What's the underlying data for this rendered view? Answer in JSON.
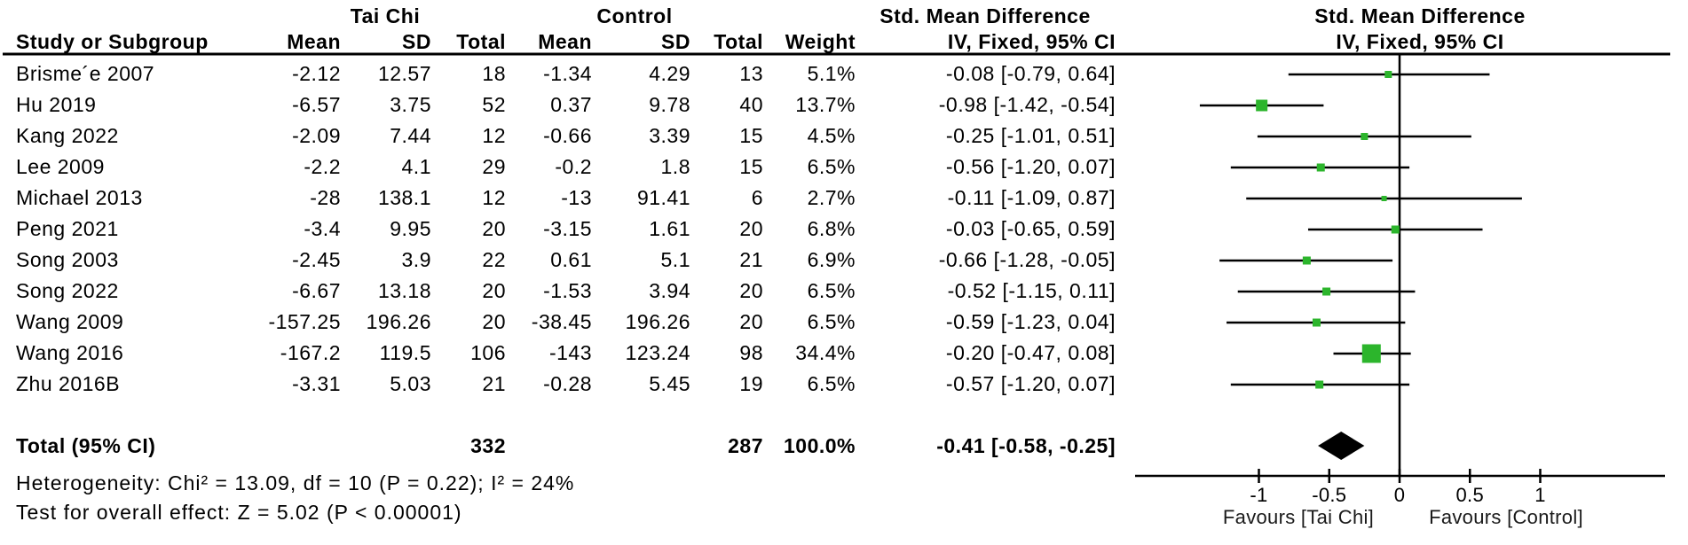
{
  "figure": {
    "group1_label": "Tai Chi",
    "group2_label": "Control",
    "effect_header": "Std. Mean Difference",
    "effect_subheader": "IV, Fixed, 95% CI",
    "plot_header": "Std. Mean Difference",
    "plot_subheader": "IV, Fixed, 95% CI",
    "col_headers": {
      "study": "Study or Subgroup",
      "mean": "Mean",
      "sd": "SD",
      "total": "Total",
      "weight": "Weight"
    }
  },
  "chart_data": {
    "type": "forest",
    "title": "Std. Mean Difference, IV, Fixed, 95% CI",
    "marker_color": "#2CB52C",
    "diamond_color": "#000000",
    "line_color": "#000000",
    "axis": {
      "ticks": [
        -1,
        -0.5,
        0,
        0.5,
        1
      ],
      "tick_labels": [
        "-1",
        "-0.5",
        "0",
        "0.5",
        "1"
      ],
      "xlim": [
        -1.88,
        1.89
      ],
      "left_favours": "Favours [Tai Chi]",
      "right_favours": "Favours [Control]"
    },
    "studies": [
      {
        "study": "Brisme´e 2007",
        "mean1": "-2.12",
        "sd1": "12.57",
        "total1": "18",
        "mean2": "-1.34",
        "sd2": "4.29",
        "total2": "13",
        "weight": "5.1%",
        "weight_pct": 5.1,
        "ci": "-0.08 [-0.79, 0.64]",
        "est": -0.08,
        "lo": -0.79,
        "hi": 0.64
      },
      {
        "study": "Hu 2019",
        "mean1": "-6.57",
        "sd1": "3.75",
        "total1": "52",
        "mean2": "0.37",
        "sd2": "9.78",
        "total2": "40",
        "weight": "13.7%",
        "weight_pct": 13.7,
        "ci": "-0.98 [-1.42, -0.54]",
        "est": -0.98,
        "lo": -1.42,
        "hi": -0.54
      },
      {
        "study": "Kang 2022",
        "mean1": "-2.09",
        "sd1": "7.44",
        "total1": "12",
        "mean2": "-0.66",
        "sd2": "3.39",
        "total2": "15",
        "weight": "4.5%",
        "weight_pct": 4.5,
        "ci": "-0.25 [-1.01, 0.51]",
        "est": -0.25,
        "lo": -1.01,
        "hi": 0.51
      },
      {
        "study": "Lee 2009",
        "mean1": "-2.2",
        "sd1": "4.1",
        "total1": "29",
        "mean2": "-0.2",
        "sd2": "1.8",
        "total2": "15",
        "weight": "6.5%",
        "weight_pct": 6.5,
        "ci": "-0.56 [-1.20, 0.07]",
        "est": -0.56,
        "lo": -1.2,
        "hi": 0.07
      },
      {
        "study": "Michael  2013",
        "mean1": "-28",
        "sd1": "138.1",
        "total1": "12",
        "mean2": "-13",
        "sd2": "91.41",
        "total2": "6",
        "weight": "2.7%",
        "weight_pct": 2.7,
        "ci": "-0.11 [-1.09, 0.87]",
        "est": -0.11,
        "lo": -1.09,
        "hi": 0.87
      },
      {
        "study": "Peng 2021",
        "mean1": "-3.4",
        "sd1": "9.95",
        "total1": "20",
        "mean2": "-3.15",
        "sd2": "1.61",
        "total2": "20",
        "weight": "6.8%",
        "weight_pct": 6.8,
        "ci": "-0.03 [-0.65, 0.59]",
        "est": -0.03,
        "lo": -0.65,
        "hi": 0.59
      },
      {
        "study": "Song 2003",
        "mean1": "-2.45",
        "sd1": "3.9",
        "total1": "22",
        "mean2": "0.61",
        "sd2": "5.1",
        "total2": "21",
        "weight": "6.9%",
        "weight_pct": 6.9,
        "ci": "-0.66 [-1.28, -0.05]",
        "est": -0.66,
        "lo": -1.28,
        "hi": -0.05
      },
      {
        "study": "Song 2022",
        "mean1": "-6.67",
        "sd1": "13.18",
        "total1": "20",
        "mean2": "-1.53",
        "sd2": "3.94",
        "total2": "20",
        "weight": "6.5%",
        "weight_pct": 6.5,
        "ci": "-0.52 [-1.15, 0.11]",
        "est": -0.52,
        "lo": -1.15,
        "hi": 0.11
      },
      {
        "study": "Wang 2009",
        "mean1": "-157.25",
        "sd1": "196.26",
        "total1": "20",
        "mean2": "-38.45",
        "sd2": "196.26",
        "total2": "20",
        "weight": "6.5%",
        "weight_pct": 6.5,
        "ci": "-0.59 [-1.23, 0.04]",
        "est": -0.59,
        "lo": -1.23,
        "hi": 0.04
      },
      {
        "study": "Wang 2016",
        "mean1": "-167.2",
        "sd1": "119.5",
        "total1": "106",
        "mean2": "-143",
        "sd2": "123.24",
        "total2": "98",
        "weight": "34.4%",
        "weight_pct": 34.4,
        "ci": "-0.20 [-0.47, 0.08]",
        "est": -0.2,
        "lo": -0.47,
        "hi": 0.08
      },
      {
        "study": "Zhu 2016B",
        "mean1": "-3.31",
        "sd1": "5.03",
        "total1": "21",
        "mean2": "-0.28",
        "sd2": "5.45",
        "total2": "19",
        "weight": "6.5%",
        "weight_pct": 6.5,
        "ci": "-0.57 [-1.20, 0.07]",
        "est": -0.57,
        "lo": -1.2,
        "hi": 0.07
      }
    ],
    "total": {
      "label": "Total (95% CI)",
      "total1": "332",
      "total2": "287",
      "weight": "100.0%",
      "ci": "-0.41 [-0.58, -0.25]",
      "est": -0.41,
      "lo": -0.58,
      "hi": -0.25
    },
    "heterogeneity": "Heterogeneity: Chi² = 13.09, df = 10 (P = 0.22); I² = 24%",
    "overall_effect": "Test for overall effect: Z = 5.02 (P < 0.00001)"
  }
}
